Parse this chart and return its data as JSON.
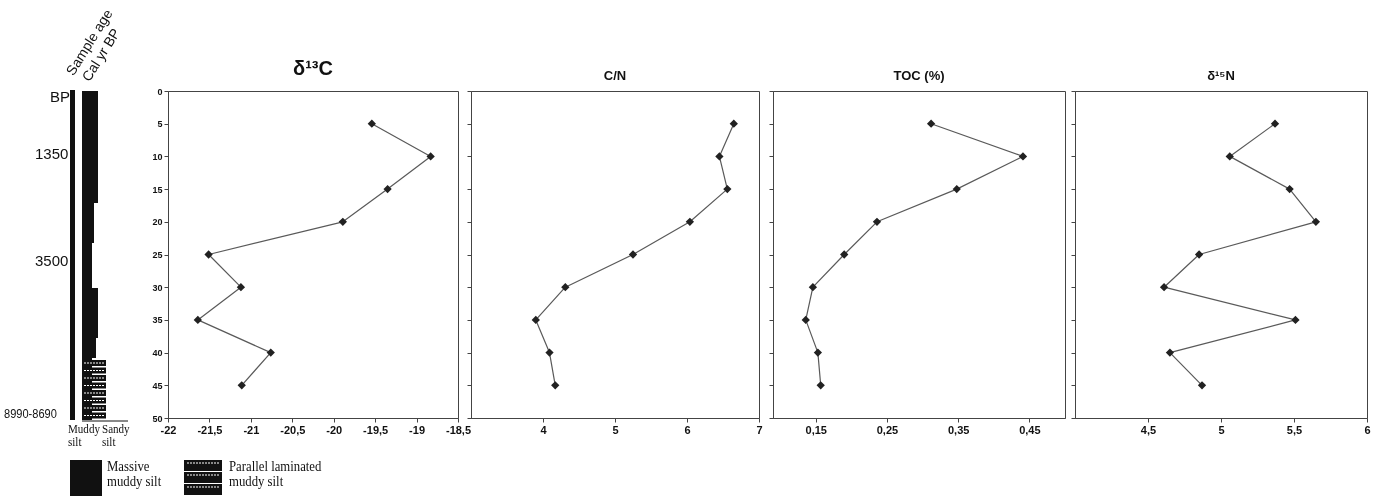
{
  "chart_data": [
    {
      "type": "other",
      "annotations": [
        "Sample age",
        "Cal yr BP",
        "BP",
        "1350",
        "3500",
        "8990-8690",
        "Muddy silt",
        "Sandy silt",
        "Massive muddy silt",
        "Parallel laminated muddy silt"
      ]
    },
    {
      "type": "line",
      "title": "δ¹³C",
      "orientation": "horizontal",
      "marker": "diamond",
      "x": [
        5,
        10,
        15,
        20,
        25,
        30,
        35,
        40,
        45
      ],
      "series": [
        {
          "color": "#222222",
          "values": [
            -19.54,
            -18.83,
            -19.35,
            -19.89,
            -21.51,
            -21.12,
            -21.64,
            -20.76,
            -21.11
          ]
        }
      ],
      "xlim": [
        -22,
        -18.5
      ],
      "xticks": [
        -22,
        {
          "value": -21.5,
          "label": "-21,5"
        },
        -21,
        {
          "value": -20.5,
          "label": "-20,5"
        },
        -20,
        {
          "value": -19.5,
          "label": "-19,5"
        },
        -19,
        {
          "value": -18.5,
          "label": "-18,5"
        }
      ],
      "ylim": [
        50,
        0
      ],
      "yticks": [
        0,
        5,
        10,
        15,
        20,
        25,
        30,
        35,
        40,
        45,
        50
      ]
    },
    {
      "type": "line",
      "title": "C/N",
      "orientation": "horizontal",
      "marker": "diamond",
      "x": [
        5,
        10,
        15,
        20,
        25,
        30,
        35,
        40,
        45
      ],
      "series": [
        {
          "color": "#222222",
          "values": [
            6.65,
            6.45,
            6.56,
            6.04,
            5.25,
            4.31,
            3.9,
            4.09,
            4.17
          ]
        }
      ],
      "xlim": [
        3,
        7
      ],
      "xticks": [
        4,
        5,
        6,
        7
      ],
      "ylim": [
        50,
        0
      ],
      "yticks": [
        0,
        5,
        10,
        15,
        20,
        25,
        30,
        35,
        40,
        45,
        50
      ],
      "tick_labels": "x"
    },
    {
      "type": "line",
      "title": "TOC (%)",
      "orientation": "horizontal",
      "marker": "diamond",
      "x": [
        5,
        10,
        15,
        20,
        25,
        30,
        35,
        40,
        45
      ],
      "series": [
        {
          "color": "#222222",
          "values": [
            0.312,
            0.441,
            0.348,
            0.236,
            0.19,
            0.146,
            0.136,
            0.153,
            0.157
          ]
        }
      ],
      "xlim": [
        0.09,
        0.5
      ],
      "xticks": [
        {
          "value": 0.15,
          "label": "0,15"
        },
        {
          "value": 0.25,
          "label": "0,25"
        },
        {
          "value": 0.35,
          "label": "0,35"
        },
        {
          "value": 0.45,
          "label": "0,45"
        }
      ],
      "ylim": [
        50,
        0
      ],
      "yticks": [
        0,
        5,
        10,
        15,
        20,
        25,
        30,
        35,
        40,
        45,
        50
      ],
      "tick_labels": "x"
    },
    {
      "type": "line",
      "title": "δ¹⁵N",
      "orientation": "horizontal",
      "marker": "diamond",
      "x": [
        5,
        10,
        15,
        20,
        25,
        30,
        35,
        40,
        45
      ],
      "series": [
        {
          "color": "#222222",
          "values": [
            5.37,
            5.06,
            5.47,
            5.65,
            4.85,
            4.61,
            5.51,
            4.65,
            4.87
          ]
        }
      ],
      "xlim": [
        4,
        6
      ],
      "xticks": [
        {
          "value": 4.5,
          "label": "4,5"
        },
        5,
        {
          "value": 5.5,
          "label": "5,5"
        },
        6
      ],
      "ylim": [
        50,
        0
      ],
      "yticks": [
        0,
        5,
        10,
        15,
        20,
        25,
        30,
        35,
        40,
        45,
        50
      ],
      "tick_labels": "x"
    }
  ]
}
